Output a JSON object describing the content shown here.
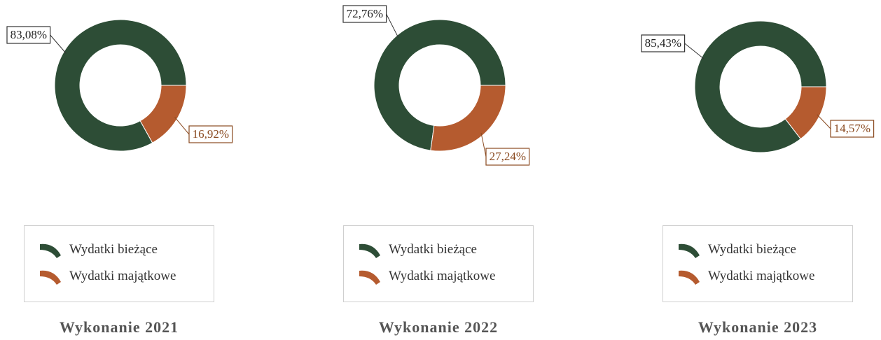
{
  "colors": {
    "current": "#2d4d36",
    "capital": "#b55b2f",
    "box_border_current": "#333333",
    "box_border_capital": "#8a4a20"
  },
  "legend": {
    "current_label": "Wydatki bieżące",
    "capital_label": "Wydatki majątkowe"
  },
  "chart_data": [
    {
      "type": "pie",
      "title": "Wykonanie 2021",
      "categories": [
        "Wydatki bieżące",
        "Wydatki majątkowe"
      ],
      "values": [
        83.08,
        16.92
      ],
      "labels": [
        "83,08%",
        "16,92%"
      ],
      "hole": true
    },
    {
      "type": "pie",
      "title": "Wykonanie 2022",
      "categories": [
        "Wydatki bieżące",
        "Wydatki majątkowe"
      ],
      "values": [
        72.76,
        27.24
      ],
      "labels": [
        "72,76%",
        "27,24%"
      ],
      "hole": true
    },
    {
      "type": "pie",
      "title": "Wykonanie 2023",
      "categories": [
        "Wydatki bieżące",
        "Wydatki majątkowe"
      ],
      "values": [
        85.43,
        14.57
      ],
      "labels": [
        "85,43%",
        "14,57%"
      ],
      "hole": true
    }
  ]
}
